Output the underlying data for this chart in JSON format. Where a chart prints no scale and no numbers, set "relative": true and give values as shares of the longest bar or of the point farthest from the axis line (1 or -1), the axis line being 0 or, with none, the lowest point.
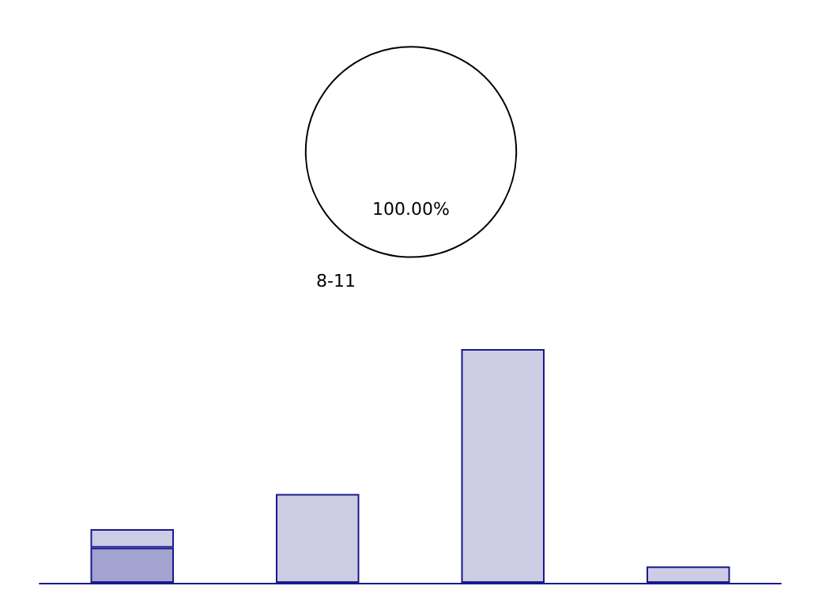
{
  "chart_data": [
    {
      "type": "pie",
      "categories": [
        "8-11"
      ],
      "values": [
        100
      ],
      "colors": [
        "#ffffff"
      ],
      "value_labels": [
        "100.00%"
      ],
      "legend": false
    },
    {
      "type": "bar",
      "relative": true,
      "stacked": true,
      "categories": [
        null,
        null,
        null,
        null
      ],
      "legend": false,
      "grid": false,
      "series": [
        {
          "color": "#a3a3d0",
          "values": [
            0.15,
            null,
            null,
            null
          ]
        },
        {
          "color": "#cccce4",
          "values": [
            0.08,
            0.38,
            1,
            0.07
          ]
        }
      ]
    }
  ]
}
